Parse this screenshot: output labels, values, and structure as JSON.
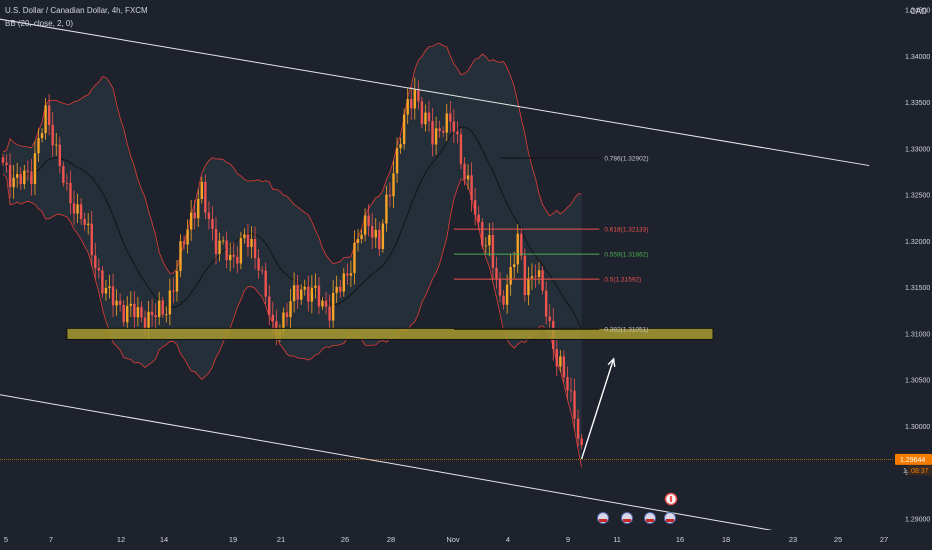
{
  "header": {
    "title": "U.S. Dollar / Canadian Dollar, 4h, FXCM",
    "indicator": "BB (20, close, 2, 0)",
    "currency": "CAD"
  },
  "price_axis": {
    "ticks": [
      "1.34500",
      "1.34000",
      "1.33500",
      "1.33000",
      "1.32500",
      "1.32000",
      "1.31500",
      "1.31000",
      "1.30500",
      "1.30000",
      "1.29500",
      "1.29000"
    ],
    "current_price": "1.29644",
    "countdown": "08:37",
    "partial_label": "1."
  },
  "time_axis": {
    "ticks": [
      "5",
      "7",
      "12",
      "14",
      "19",
      "21",
      "26",
      "28",
      "Nov",
      "4",
      "9",
      "11",
      "16",
      "18",
      "23",
      "25",
      "27"
    ]
  },
  "colors": {
    "background": "#1e222d",
    "up": "#f7a325",
    "down": "#ef5350",
    "band": "#e23c35",
    "basis": "#111111",
    "support_zone": "#a89a2f",
    "current_price_line": "#f57c00",
    "fib_green": "#4caf50"
  },
  "chart_data": {
    "type": "candlestick",
    "ylim": [
      1.2888,
      1.3461
    ],
    "trendlines": [
      {
        "name": "upper channel",
        "from": {
          "bar": -2,
          "price": 1.3441
        },
        "to": {
          "bar": 244,
          "price": 1.3282
        }
      },
      {
        "name": "lower channel",
        "from": {
          "bar": -2,
          "price": 1.3035
        },
        "to": {
          "bar": 222,
          "price": 1.2884
        }
      }
    ],
    "support_zone": {
      "from_bar": 18,
      "to_bar": 200,
      "top": 1.3106,
      "bottom": 1.3094
    },
    "fib_levels": [
      {
        "label": "0.786(1.32902)",
        "price": 1.32902,
        "color": "#111111"
      },
      {
        "label": "0.618(1.32133)",
        "price": 1.32133,
        "color": "#ef5350"
      },
      {
        "label": "0.559(1.31862)",
        "price": 1.31862,
        "color": "#4caf50"
      },
      {
        "label": "0.5(1.31592)",
        "price": 1.31592,
        "color": "#ef5350"
      },
      {
        "label": "0.382(1.31051)",
        "price": 1.31051,
        "color": "#111111"
      }
    ],
    "arrow": {
      "from": {
        "bar": 163,
        "price": 1.2965
      },
      "to": {
        "bar": 172,
        "price": 1.3073
      }
    },
    "waypoints": [
      [
        0,
        1.3285
      ],
      [
        4,
        1.3262
      ],
      [
        8,
        1.3278
      ],
      [
        12,
        1.3335
      ],
      [
        14,
        1.3318
      ],
      [
        18,
        1.3248
      ],
      [
        22,
        1.3232
      ],
      [
        26,
        1.3175
      ],
      [
        30,
        1.3138
      ],
      [
        34,
        1.3128
      ],
      [
        38,
        1.312
      ],
      [
        42,
        1.3118
      ],
      [
        45,
        1.3125
      ],
      [
        48,
        1.315
      ],
      [
        52,
        1.322
      ],
      [
        56,
        1.325
      ],
      [
        60,
        1.32
      ],
      [
        64,
        1.318
      ],
      [
        68,
        1.3202
      ],
      [
        72,
        1.3182
      ],
      [
        76,
        1.31
      ],
      [
        79,
        1.3118
      ],
      [
        84,
        1.3152
      ],
      [
        88,
        1.314
      ],
      [
        92,
        1.3128
      ],
      [
        96,
        1.3158
      ],
      [
        100,
        1.32
      ],
      [
        103,
        1.3225
      ],
      [
        106,
        1.3195
      ],
      [
        110,
        1.328
      ],
      [
        113,
        1.333
      ],
      [
        116,
        1.3365
      ],
      [
        118,
        1.3338
      ],
      [
        121,
        1.3312
      ],
      [
        124,
        1.333
      ],
      [
        127,
        1.3322
      ],
      [
        130,
        1.3278
      ],
      [
        132,
        1.3245
      ],
      [
        134,
        1.321
      ],
      [
        137,
        1.32
      ],
      [
        140,
        1.313
      ],
      [
        143,
        1.317
      ],
      [
        145,
        1.3198
      ],
      [
        147,
        1.3152
      ],
      [
        150,
        1.3172
      ],
      [
        153,
        1.3125
      ],
      [
        156,
        1.3075
      ],
      [
        159,
        1.304
      ],
      [
        161,
        1.302
      ],
      [
        163,
        1.297
      ]
    ]
  }
}
